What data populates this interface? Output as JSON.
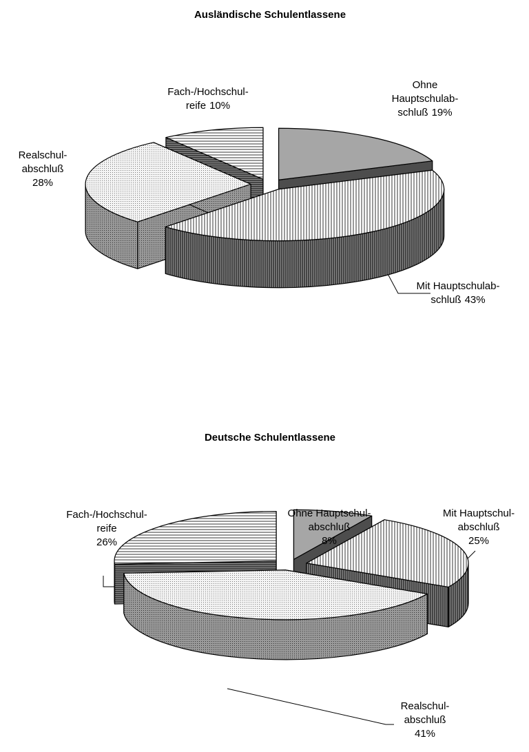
{
  "chart_data": [
    {
      "type": "pie",
      "title": "Ausländische Schulentlassene",
      "categories": [
        "Ohne\nHauptschulab-\nschluß",
        "Mit Hauptschulab-\nschluß",
        "Realschul-\nabschluß",
        "Fach-/Hochschul-\nreife"
      ],
      "values": [
        19,
        43,
        28,
        10
      ],
      "value_labels": [
        "19%",
        "43%",
        "28%",
        "10%"
      ]
    },
    {
      "type": "pie",
      "title": "Deutsche Schulentlassene",
      "categories": [
        "Ohne Hauptschul-\nabschluß",
        "Mit Hauptschul-\nabschluß",
        "Realschul-\nabschluß",
        "Fach-/Hochschul-\nreife"
      ],
      "values": [
        8,
        25,
        41,
        26
      ],
      "value_labels": [
        "8%",
        "25%",
        "41%",
        "26%"
      ]
    }
  ]
}
